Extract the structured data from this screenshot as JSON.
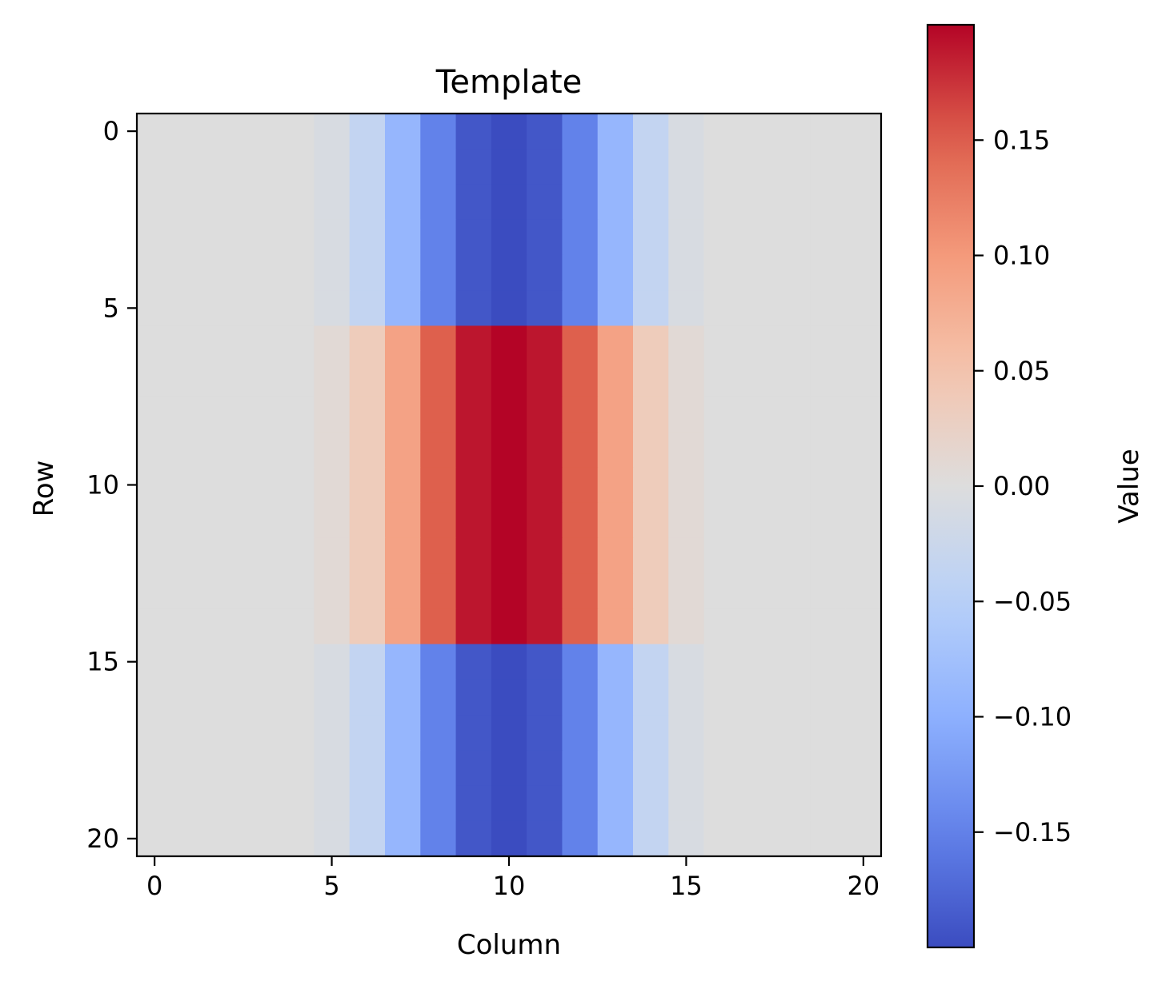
{
  "chart_data": {
    "type": "heatmap",
    "title": "Template",
    "xlabel": "Column",
    "ylabel": "Row",
    "colorbar_label": "Value",
    "colormap": "coolwarm",
    "rows": 21,
    "cols": 21,
    "xlim": [
      -0.5,
      20.5
    ],
    "ylim": [
      20.5,
      -0.5
    ],
    "xticks": [
      0,
      5,
      10,
      15,
      20
    ],
    "yticks": [
      0,
      5,
      10,
      15,
      20
    ],
    "xtick_labels": [
      "0",
      "5",
      "10",
      "15",
      "20"
    ],
    "ytick_labels": [
      "0",
      "5",
      "10",
      "15",
      "20"
    ],
    "vmin": -0.2,
    "vmax": 0.2,
    "colorbar_ticks": [
      0.15,
      0.1,
      0.05,
      0.0,
      -0.05,
      -0.1,
      -0.15
    ],
    "colorbar_tick_labels": [
      "0.15",
      "0.10",
      "0.05",
      "0.00",
      "−0.05",
      "−0.10",
      "−0.15"
    ],
    "column_profile": [
      0,
      0,
      0,
      0,
      0,
      0.008,
      0.035,
      0.09,
      0.15,
      0.19,
      0.2,
      0.19,
      0.15,
      0.09,
      0.035,
      0.008,
      0,
      0,
      0,
      0,
      0
    ],
    "row_signs": [
      -1,
      -1,
      -1,
      -1,
      -1,
      -1,
      1,
      1,
      1,
      1,
      1,
      1,
      1,
      1,
      1,
      -1,
      -1,
      -1,
      -1,
      -1,
      -1
    ],
    "background_color": "#dddddd"
  }
}
